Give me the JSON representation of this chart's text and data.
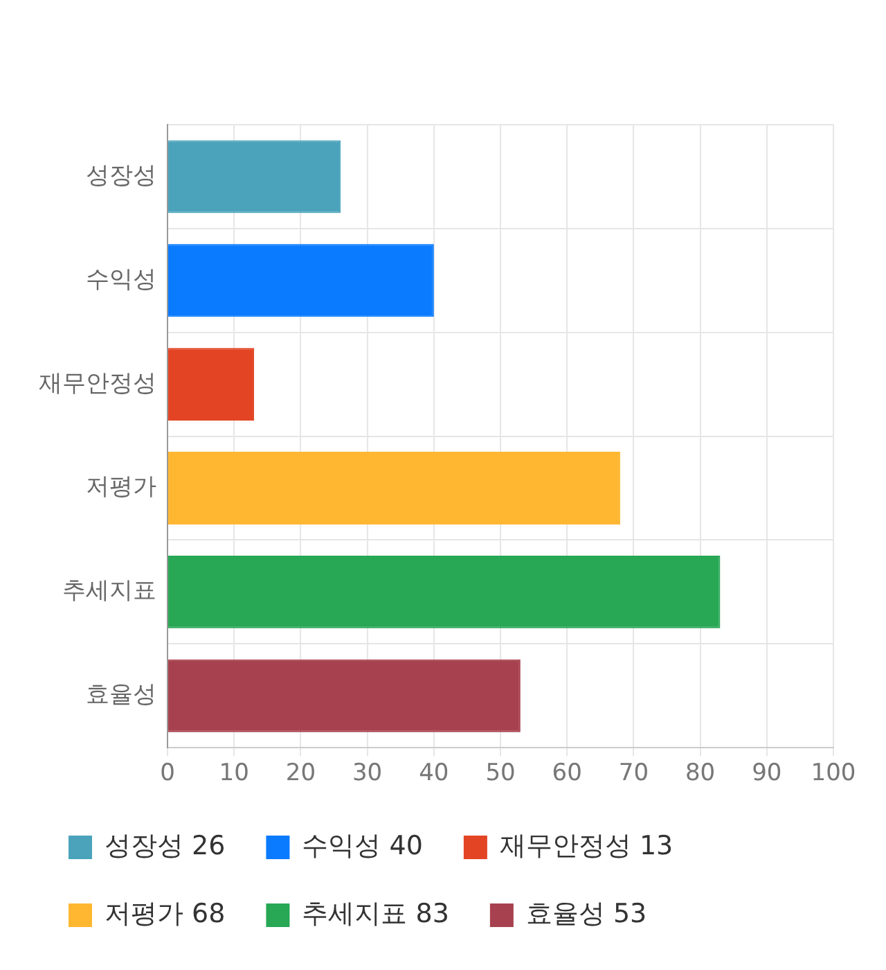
{
  "chart_data": {
    "type": "bar",
    "orientation": "horizontal",
    "stacked": true,
    "categories": [
      "성장성",
      "수익성",
      "재무안정성",
      "저평가",
      "추세지표",
      "효율성"
    ],
    "series": [
      {
        "name": "성장성 26",
        "color": "#4aa3bb",
        "values": [
          26,
          null,
          null,
          null,
          null,
          null
        ]
      },
      {
        "name": "수익성 40",
        "color": "#0a7bff",
        "values": [
          null,
          40,
          null,
          null,
          null,
          null
        ]
      },
      {
        "name": "재무안정성 13",
        "color": "#e34424",
        "values": [
          null,
          null,
          13,
          null,
          null,
          null
        ]
      },
      {
        "name": "저평가 68",
        "color": "#ffb732",
        "values": [
          null,
          null,
          null,
          68,
          null,
          null
        ]
      },
      {
        "name": "추세지표 83",
        "color": "#28a755",
        "values": [
          null,
          null,
          null,
          null,
          83,
          null
        ]
      },
      {
        "name": "효율성 53",
        "color": "#a8414f",
        "values": [
          null,
          null,
          null,
          null,
          null,
          53
        ]
      }
    ],
    "xlim": [
      0,
      100
    ],
    "xticks": [
      0,
      10,
      20,
      30,
      40,
      50,
      60,
      70,
      80,
      90,
      100
    ],
    "grid": true,
    "legend": "bottom"
  }
}
